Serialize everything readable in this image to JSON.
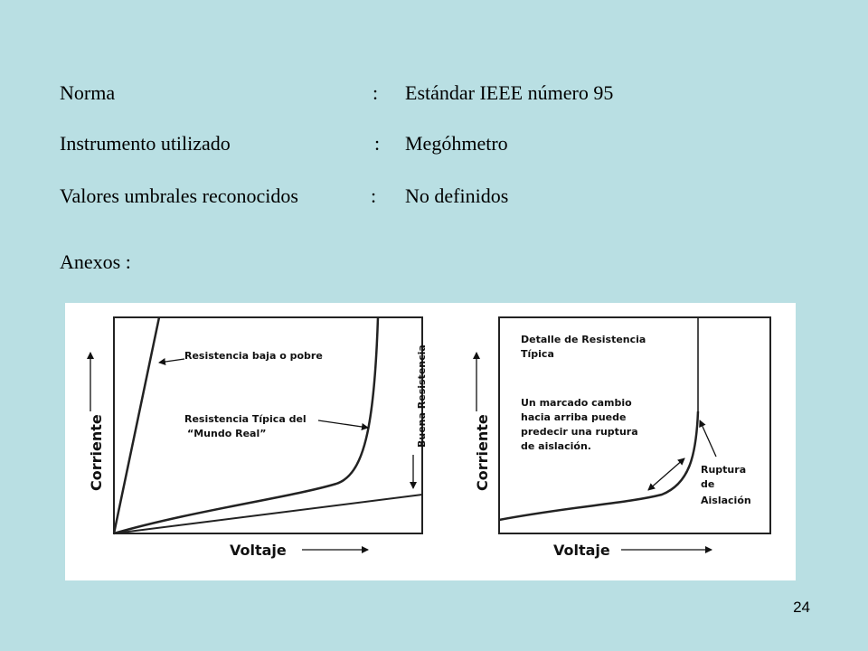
{
  "info_rows": [
    {
      "label": "Norma",
      "separator": ":",
      "value": "Estándar IEEE número 95"
    },
    {
      "label": "Instrumento utilizado",
      "separator": ":",
      "value": "Megóhmetro"
    },
    {
      "label": "Valores umbrales reconocidos",
      "separator": ":",
      "value": "No definidos"
    }
  ],
  "annex_label": "Anexos :",
  "slide_number": "24",
  "figure": {
    "left_diagram": {
      "x_axis_title": "Voltaje",
      "y_axis_title": "Corriente",
      "label_low_resistance": "Resistencia baja o pobre",
      "label_typical_line1": "Resistencia Típica del",
      "label_typical_line2": "“Mundo Real”",
      "label_good_resistance": "Buena Resistencia"
    },
    "right_diagram": {
      "x_axis_title": "Voltaje",
      "y_axis_title": "Corriente",
      "detail_line1": "Detalle de Resistencia",
      "detail_line2": "Típica",
      "note_line1": "Un marcado cambio",
      "note_line2": "hacia arriba puede",
      "note_line3": "predecir una ruptura",
      "note_line4": "de aislación.",
      "breakdown_line1": "Ruptura",
      "breakdown_line2": "de",
      "breakdown_line3": "Aislación"
    }
  },
  "colors": {
    "background": "#b9dfe3",
    "panel": "#ffffff",
    "ink": "#111111"
  }
}
